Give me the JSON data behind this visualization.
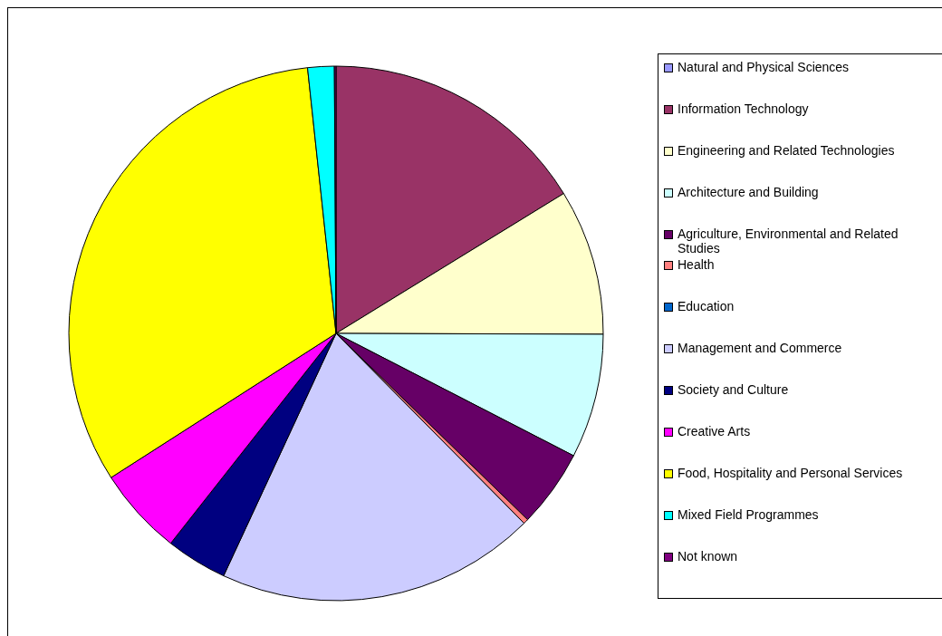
{
  "chart_data": {
    "type": "pie",
    "categories": [
      "Natural and Physical Sciences",
      "Information Technology",
      "Engineering and Related Technologies",
      "Architecture and Building",
      "Agriculture, Environmental and Related Studies",
      "Health",
      "Education",
      "Management and Commerce",
      "Society and Culture",
      "Creative Arts",
      "Food, Hospitality and Personal Services",
      "Mixed Field Programmes",
      "Not known"
    ],
    "values": [
      null,
      16.2,
      8.8,
      7.5,
      4.7,
      0.3,
      null,
      19.3,
      3.7,
      5.3,
      32.3,
      1.6,
      0.1
    ],
    "colors": [
      "#9999ff",
      "#993366",
      "#ffffcc",
      "#ccffff",
      "#660066",
      "#ff8080",
      "#0066cc",
      "#ccccff",
      "#000080",
      "#ff00ff",
      "#ffff00",
      "#00ffff",
      "#800080"
    ],
    "legend": "right"
  }
}
